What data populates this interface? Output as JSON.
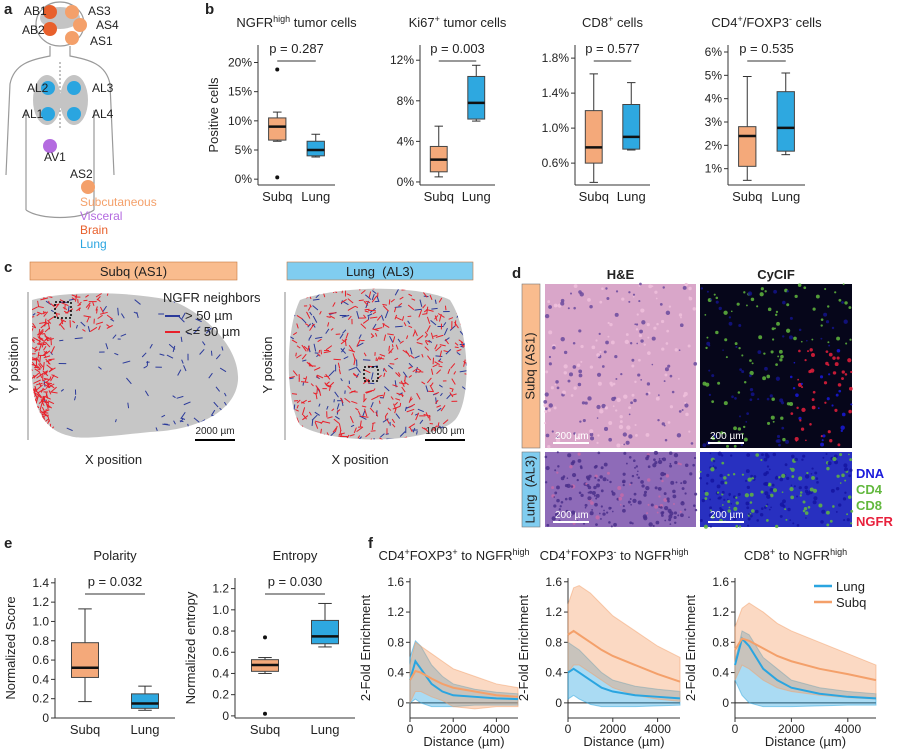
{
  "panel_labels": [
    "a",
    "b",
    "c",
    "d",
    "e",
    "f"
  ],
  "body_map": {
    "groups": [
      {
        "name": "Subcutaneous",
        "color": "#f4a06a",
        "sites": [
          "AS3",
          "AS4",
          "AS1",
          "AS2"
        ]
      },
      {
        "name": "Visceral",
        "color": "#b46be0",
        "sites": [
          "AV1"
        ]
      },
      {
        "name": "Brain",
        "color": "#e8602c",
        "sites": [
          "AB1",
          "AB2"
        ]
      },
      {
        "name": "Lung",
        "color": "#2aa5e0",
        "sites": [
          "AL2",
          "AL3",
          "AL1",
          "AL4"
        ]
      }
    ]
  },
  "spatial_maps": {
    "maps": [
      {
        "header": "Subq (AS1)",
        "color": "#f9bc8e",
        "scale": "2000 µm"
      },
      {
        "header": "Lung  (AL3)",
        "color": "#80cdf0",
        "scale": "1000 µm"
      }
    ],
    "legend_title": "NGFR neighbors",
    "legend": [
      {
        "name": "> 50 µm",
        "color": "#2b3a9a"
      },
      {
        "name": "<= 50 µm",
        "color": "#e8202a"
      }
    ],
    "xlabel": "X position",
    "ylabel": "Y position"
  },
  "images": {
    "columns": [
      "H&E",
      "CyCIF"
    ],
    "rows": [
      {
        "label": "Subq (AS1)",
        "color": "#f9bc8e"
      },
      {
        "label": "Lung  (AL3)",
        "color": "#80cdf0"
      }
    ],
    "scale": "200 µm",
    "channels": [
      {
        "name": "DNA",
        "color": "#1a1adc"
      },
      {
        "name": "CD4",
        "color": "#62b83e"
      },
      {
        "name": "CD8",
        "color": "#62b83e"
      },
      {
        "name": "NGFR",
        "color": "#e8203c"
      }
    ]
  },
  "chart_data": [
    {
      "type": "box",
      "title_parts": [
        {
          "text": "NGFR"
        },
        {
          "text": "high",
          "sup": true
        },
        {
          "text": " tumor cells"
        }
      ],
      "ylabel": "Positive cells",
      "categories": [
        "Subq",
        "Lung"
      ],
      "colors": [
        "#f4a97a",
        "#2ea8e0"
      ],
      "boxes": [
        {
          "min": 6.5,
          "q1": 6.7,
          "median": 9,
          "q3": 10.5,
          "max": 11.5,
          "outliers": [
            18.8,
            0.3
          ]
        },
        {
          "min": 3.8,
          "q1": 4,
          "median": 5,
          "q3": 6.5,
          "max": 7.7
        }
      ],
      "ylim": [
        -1,
        23
      ],
      "yticks": [
        {
          "value": 0,
          "label": "0%"
        },
        {
          "value": 5,
          "label": "5%"
        },
        {
          "value": 10,
          "label": "10%"
        },
        {
          "value": 15,
          "label": "15%"
        },
        {
          "value": 20,
          "label": "20%"
        }
      ],
      "annotation": "p = 0.287"
    },
    {
      "type": "box",
      "title_parts": [
        {
          "text": "Ki67"
        },
        {
          "text": "+",
          "sup": true
        },
        {
          "text": " tumor cells"
        }
      ],
      "categories": [
        "Subq",
        "Lung"
      ],
      "colors": [
        "#f4a97a",
        "#2ea8e0"
      ],
      "boxes": [
        {
          "min": 0.5,
          "q1": 1,
          "median": 2.2,
          "q3": 3.5,
          "max": 5.5
        },
        {
          "min": 6,
          "q1": 6.2,
          "median": 7.8,
          "q3": 10.4,
          "max": 11.5
        }
      ],
      "ylim": [
        -0.3,
        13.5
      ],
      "yticks": [
        {
          "value": 0,
          "label": "0%"
        },
        {
          "value": 4,
          "label": "4%"
        },
        {
          "value": 8,
          "label": "8%"
        },
        {
          "value": 12,
          "label": "12%"
        }
      ],
      "annotation": "p = 0.003"
    },
    {
      "type": "box",
      "title_parts": [
        {
          "text": "CD8"
        },
        {
          "text": "+",
          "sup": true
        },
        {
          "text": " cells"
        }
      ],
      "categories": [
        "Subq",
        "Lung"
      ],
      "colors": [
        "#f4a97a",
        "#2ea8e0"
      ],
      "boxes": [
        {
          "min": 0.38,
          "q1": 0.6,
          "median": 0.78,
          "q3": 1.2,
          "max": 1.62
        },
        {
          "min": 0.75,
          "q1": 0.76,
          "median": 0.9,
          "q3": 1.27,
          "max": 1.52
        }
      ],
      "ylim": [
        0.35,
        1.95
      ],
      "yticks": [
        {
          "value": 0.6,
          "label": "0.6%"
        },
        {
          "value": 1,
          "label": "1.0%"
        },
        {
          "value": 1.4,
          "label": "1.4%"
        },
        {
          "value": 1.8,
          "label": "1.8%"
        }
      ],
      "annotation": "p = 0.577"
    },
    {
      "type": "box",
      "title_parts": [
        {
          "text": "CD4"
        },
        {
          "text": "+",
          "sup": true
        },
        {
          "text": "/FOXP3"
        },
        {
          "text": "-",
          "sup": true
        },
        {
          "text": " cells"
        }
      ],
      "categories": [
        "Subq",
        "Lung"
      ],
      "colors": [
        "#f4a97a",
        "#2ea8e0"
      ],
      "boxes": [
        {
          "min": 0.5,
          "q1": 1.1,
          "median": 2.4,
          "q3": 2.8,
          "max": 4.95
        },
        {
          "min": 1.6,
          "q1": 1.75,
          "median": 2.75,
          "q3": 4.3,
          "max": 5.1
        }
      ],
      "ylim": [
        0.3,
        6.3
      ],
      "yticks": [
        {
          "value": 1,
          "label": "1%"
        },
        {
          "value": 2,
          "label": "2%"
        },
        {
          "value": 3,
          "label": "3%"
        },
        {
          "value": 4,
          "label": "4%"
        },
        {
          "value": 5,
          "label": "5%"
        },
        {
          "value": 6,
          "label": "6%"
        }
      ],
      "annotation": "p = 0.535"
    },
    {
      "type": "box",
      "title_parts": [
        {
          "text": "Polarity"
        }
      ],
      "ylabel": "Normalized Score",
      "categories": [
        "Subq",
        "Lung"
      ],
      "colors": [
        "#f4a97a",
        "#2ea8e0"
      ],
      "boxes": [
        {
          "min": 0.17,
          "q1": 0.42,
          "median": 0.52,
          "q3": 0.78,
          "max": 1.13
        },
        {
          "min": 0.08,
          "q1": 0.1,
          "median": 0.15,
          "q3": 0.25,
          "max": 0.33
        }
      ],
      "ylim": [
        0,
        1.45
      ],
      "yticks": [
        0,
        0.2,
        0.4,
        0.6,
        0.8,
        {
          "value": 1,
          "label": "1.0"
        },
        1.2,
        1.4
      ],
      "annotation": "p = 0.032"
    },
    {
      "type": "box",
      "title_parts": [
        {
          "text": "Entropy"
        }
      ],
      "ylabel": "Normalized entropy",
      "categories": [
        "Subq",
        "Lung"
      ],
      "colors": [
        "#f4a97a",
        "#2ea8e0"
      ],
      "boxes": [
        {
          "min": 0.4,
          "q1": 0.42,
          "median": 0.48,
          "q3": 0.53,
          "max": 0.55,
          "outliers": [
            0.74,
            0.02
          ]
        },
        {
          "min": 0.65,
          "q1": 0.68,
          "median": 0.75,
          "q3": 0.9,
          "max": 1.06
        }
      ],
      "ylim": [
        -0.02,
        1.3
      ],
      "yticks": [
        0,
        0.2,
        0.4,
        0.6,
        0.8,
        {
          "value": 1,
          "label": "1.0"
        },
        1.2
      ],
      "annotation": "p = 0.030"
    },
    {
      "type": "band_line",
      "title_parts": [
        {
          "text": "CD4"
        },
        {
          "text": "+",
          "sup": true
        },
        {
          "text": "FOXP3"
        },
        {
          "text": "+",
          "sup": true
        },
        {
          "text": " to NGFR"
        },
        {
          "text": "high",
          "sup": true
        }
      ],
      "ylabel": "2-Fold Enrichment",
      "xlabel": "Distance (µm)",
      "x": [
        0,
        250,
        500,
        1000,
        1500,
        2000,
        3000,
        4000,
        5000
      ],
      "xlim": [
        0,
        5000
      ],
      "xticks": [
        0,
        2000,
        4000
      ],
      "ylim": [
        -0.2,
        1.65
      ],
      "yticks": [
        0,
        0.4,
        0.8,
        1.2,
        1.6
      ],
      "series": [
        {
          "name": "Lung",
          "color": "#2aa5e0",
          "values": [
            0.3,
            0.55,
            0.45,
            0.25,
            0.15,
            0.1,
            0.08,
            0.06,
            0.05
          ],
          "lower": [
            0,
            0.05,
            0,
            -0.05,
            -0.05,
            -0.05,
            -0.03,
            -0.03,
            -0.03
          ],
          "upper": [
            0.6,
            0.82,
            0.75,
            0.5,
            0.35,
            0.25,
            0.18,
            0.14,
            0.12
          ]
        },
        {
          "name": "Subq",
          "color": "#f4a06a",
          "values": [
            0.3,
            0.42,
            0.4,
            0.32,
            0.25,
            0.2,
            0.15,
            0.1,
            0.08
          ],
          "lower": [
            0,
            0.15,
            0.15,
            0.08,
            0.03,
            -0.05,
            -0.08,
            -0.05,
            -0.05
          ],
          "upper": [
            0.5,
            0.8,
            0.75,
            0.65,
            0.55,
            0.45,
            0.35,
            0.25,
            0.2
          ]
        }
      ]
    },
    {
      "type": "band_line",
      "title_parts": [
        {
          "text": "CD4"
        },
        {
          "text": "+",
          "sup": true
        },
        {
          "text": "FOXP3"
        },
        {
          "text": "-",
          "sup": true
        },
        {
          "text": " to NGFR"
        },
        {
          "text": "high",
          "sup": true
        }
      ],
      "ylabel": "2-Fold Enrichment",
      "xlabel": "Distance (µm)",
      "x": [
        0,
        250,
        500,
        1000,
        1500,
        2000,
        3000,
        4000,
        5000
      ],
      "xlim": [
        0,
        5000
      ],
      "xticks": [
        0,
        2000,
        4000
      ],
      "ylim": [
        -0.2,
        1.65
      ],
      "yticks": [
        0,
        0.4,
        0.8,
        1.2,
        1.6
      ],
      "series": [
        {
          "name": "Lung",
          "color": "#2aa5e0",
          "values": [
            0.4,
            0.45,
            0.4,
            0.3,
            0.2,
            0.15,
            0.1,
            0.08,
            0.06
          ],
          "lower": [
            0.05,
            0.1,
            0.05,
            -0.02,
            -0.05,
            -0.05,
            -0.05,
            -0.04,
            -0.03
          ],
          "upper": [
            0.8,
            0.75,
            0.7,
            0.55,
            0.4,
            0.3,
            0.22,
            0.18,
            0.15
          ]
        },
        {
          "name": "Subq",
          "color": "#f4a06a",
          "values": [
            0.9,
            0.95,
            0.9,
            0.8,
            0.7,
            0.62,
            0.5,
            0.38,
            0.28
          ],
          "lower": [
            0.4,
            0.5,
            0.5,
            0.4,
            0.3,
            0.2,
            0.1,
            0.05,
            0.02
          ],
          "upper": [
            1.3,
            1.52,
            1.55,
            1.45,
            1.3,
            1.15,
            0.95,
            0.75,
            0.6
          ]
        }
      ]
    },
    {
      "type": "band_line",
      "title_parts": [
        {
          "text": "CD8"
        },
        {
          "text": "+",
          "sup": true
        },
        {
          "text": " to NGFR"
        },
        {
          "text": "high",
          "sup": true
        }
      ],
      "ylabel": "2-Fold Enrichment",
      "xlabel": "Distance (µm)",
      "x": [
        0,
        250,
        500,
        1000,
        1500,
        2000,
        3000,
        4000,
        5000
      ],
      "xlim": [
        0,
        5000
      ],
      "xticks": [
        0,
        2000,
        4000
      ],
      "ylim": [
        -0.2,
        1.65
      ],
      "yticks": [
        0,
        0.4,
        0.8,
        1.2,
        1.6
      ],
      "legend": "upper right",
      "series": [
        {
          "name": "Lung",
          "color": "#2aa5e0",
          "values": [
            0.5,
            0.85,
            0.75,
            0.45,
            0.3,
            0.2,
            0.12,
            0.08,
            0.06
          ],
          "lower": [
            0.3,
            0.1,
            0,
            -0.05,
            -0.05,
            -0.05,
            -0.04,
            -0.03,
            -0.03
          ],
          "upper": [
            0.55,
            0.95,
            0.9,
            0.6,
            0.45,
            0.3,
            0.2,
            0.15,
            0.12
          ]
        },
        {
          "name": "Subq",
          "color": "#f4a06a",
          "values": [
            0.7,
            0.85,
            0.82,
            0.72,
            0.62,
            0.55,
            0.45,
            0.38,
            0.3
          ],
          "lower": [
            0.3,
            0.5,
            0.45,
            0.3,
            0.2,
            0.15,
            0.1,
            0.07,
            0.05
          ],
          "upper": [
            1,
            1.25,
            1.32,
            1.2,
            1.05,
            0.95,
            0.8,
            0.65,
            0.5
          ]
        }
      ]
    }
  ]
}
